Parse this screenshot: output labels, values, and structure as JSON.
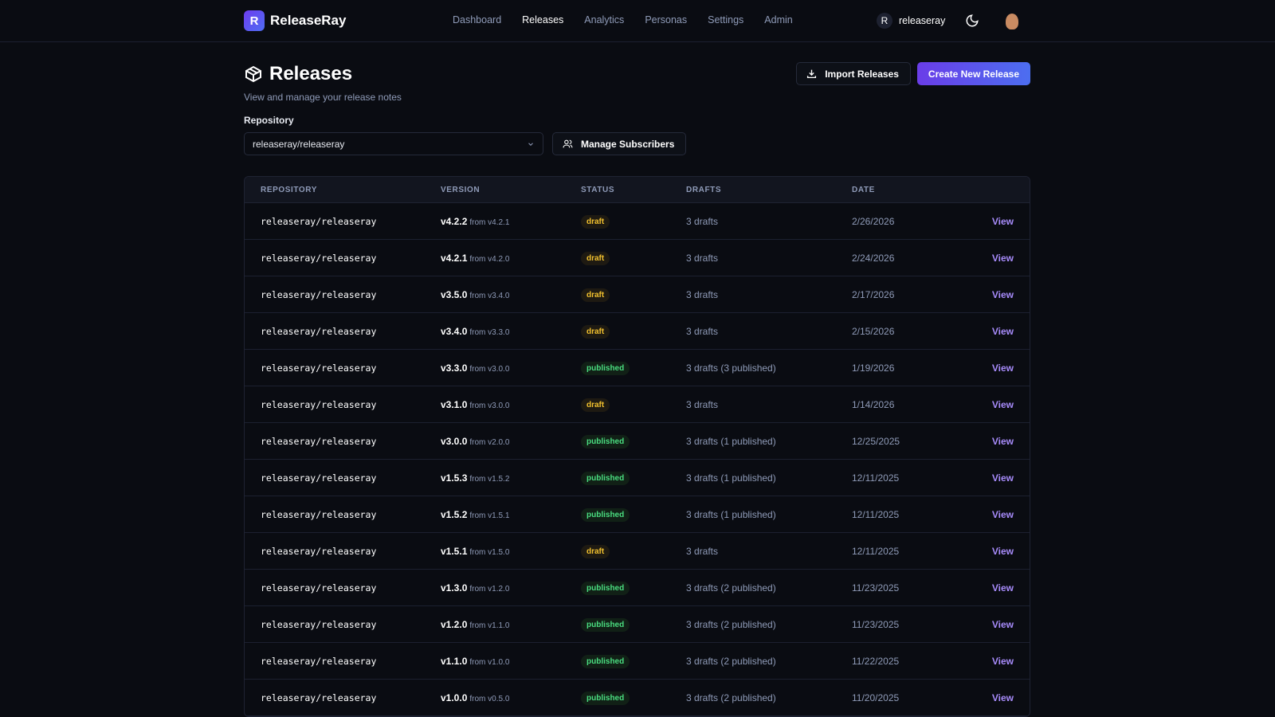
{
  "app": {
    "logo_letter": "R",
    "name": "ReleaseRay"
  },
  "nav": {
    "links": [
      "Dashboard",
      "Releases",
      "Analytics",
      "Personas",
      "Settings",
      "Admin"
    ],
    "active": "Releases"
  },
  "user": {
    "initial": "R",
    "name": "releaseray"
  },
  "page": {
    "title": "Releases",
    "subtitle": "View and manage your release notes",
    "import_label": "Import Releases",
    "create_label": "Create New Release",
    "repo_label": "Repository",
    "repo_value": "releaseray/releaseray",
    "manage_label": "Manage Subscribers"
  },
  "table": {
    "headers": [
      "REPOSITORY",
      "VERSION",
      "STATUS",
      "DRAFTS",
      "DATE"
    ],
    "view_label": "View",
    "rows": [
      {
        "repo": "releaseray/releaseray",
        "version": "v4.2.2",
        "from": "from v4.2.1",
        "status": "draft",
        "drafts": "3 drafts",
        "date": "2/26/2026"
      },
      {
        "repo": "releaseray/releaseray",
        "version": "v4.2.1",
        "from": "from v4.2.0",
        "status": "draft",
        "drafts": "3 drafts",
        "date": "2/24/2026"
      },
      {
        "repo": "releaseray/releaseray",
        "version": "v3.5.0",
        "from": "from v3.4.0",
        "status": "draft",
        "drafts": "3 drafts",
        "date": "2/17/2026"
      },
      {
        "repo": "releaseray/releaseray",
        "version": "v3.4.0",
        "from": "from v3.3.0",
        "status": "draft",
        "drafts": "3 drafts",
        "date": "2/15/2026"
      },
      {
        "repo": "releaseray/releaseray",
        "version": "v3.3.0",
        "from": "from v3.0.0",
        "status": "published",
        "drafts": "3 drafts (3 published)",
        "date": "1/19/2026"
      },
      {
        "repo": "releaseray/releaseray",
        "version": "v3.1.0",
        "from": "from v3.0.0",
        "status": "draft",
        "drafts": "3 drafts",
        "date": "1/14/2026"
      },
      {
        "repo": "releaseray/releaseray",
        "version": "v3.0.0",
        "from": "from v2.0.0",
        "status": "published",
        "drafts": "3 drafts (1 published)",
        "date": "12/25/2025"
      },
      {
        "repo": "releaseray/releaseray",
        "version": "v1.5.3",
        "from": "from v1.5.2",
        "status": "published",
        "drafts": "3 drafts (1 published)",
        "date": "12/11/2025"
      },
      {
        "repo": "releaseray/releaseray",
        "version": "v1.5.2",
        "from": "from v1.5.1",
        "status": "published",
        "drafts": "3 drafts (1 published)",
        "date": "12/11/2025"
      },
      {
        "repo": "releaseray/releaseray",
        "version": "v1.5.1",
        "from": "from v1.5.0",
        "status": "draft",
        "drafts": "3 drafts",
        "date": "12/11/2025"
      },
      {
        "repo": "releaseray/releaseray",
        "version": "v1.3.0",
        "from": "from v1.2.0",
        "status": "published",
        "drafts": "3 drafts (2 published)",
        "date": "11/23/2025"
      },
      {
        "repo": "releaseray/releaseray",
        "version": "v1.2.0",
        "from": "from v1.1.0",
        "status": "published",
        "drafts": "3 drafts (2 published)",
        "date": "11/23/2025"
      },
      {
        "repo": "releaseray/releaseray",
        "version": "v1.1.0",
        "from": "from v1.0.0",
        "status": "published",
        "drafts": "3 drafts (2 published)",
        "date": "11/22/2025"
      },
      {
        "repo": "releaseray/releaseray",
        "version": "v1.0.0",
        "from": "from v0.5.0",
        "status": "published",
        "drafts": "3 drafts (2 published)",
        "date": "11/20/2025"
      }
    ]
  },
  "colors": {
    "accent": "#6a3de8",
    "draft": "#f2c12e",
    "published": "#4ade80",
    "link": "#a78bfa"
  }
}
